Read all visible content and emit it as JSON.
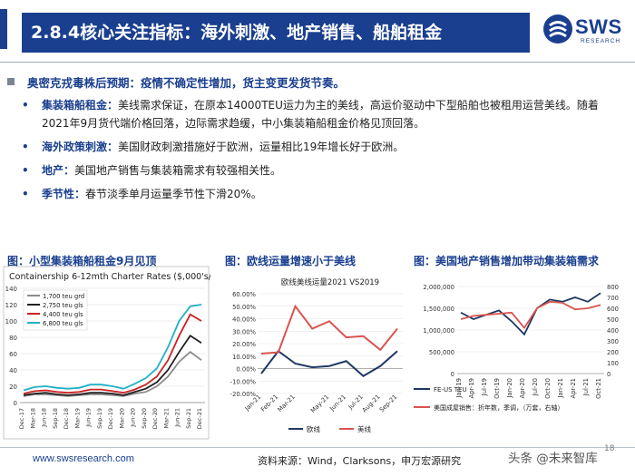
{
  "header": {
    "title": "2.8.4核心关注指标：海外刺激、地产销售、船舶租金",
    "logo_text": "SWS",
    "logo_sub": "RESEARCH"
  },
  "section": {
    "heading": "奥密克戎毒株后预期：疫情不确定性增加，货主变更发货节奏。",
    "bullets": [
      {
        "label": "集装箱船租金：",
        "text": "美线需求保证，在原本14000TEU运力为主的美线，高运价驱动中下型船舶也被租用运营美线。随着2021年9月货代端价格回落，边际需求趋缓，中小集装箱船租金价格见顶回落。"
      },
      {
        "label": "海外政策刺激：",
        "text": "美国财政刺激措施好于欧洲，运量相比19年增长好于欧洲。"
      },
      {
        "label": "地产：",
        "text": "美国地产销售与集装箱需求有较强相关性。"
      },
      {
        "label": "季节性：",
        "text": "春节淡季单月运量季节性下滑20%。"
      }
    ]
  },
  "colors": {
    "navy": "#1a3f8f",
    "eu": "#1f3864",
    "us": "#d9534f",
    "gray": "#8c8c8c",
    "black": "#222222",
    "red": "#cc2222",
    "teal": "#22b0c8"
  },
  "charts": [
    {
      "caption": "图：小型集装箱船租金9月见顶",
      "chart_data": {
        "type": "line",
        "title": "Containership 6-12mth Charter Rates ($,000's/day)",
        "x": [
          "Dec-17",
          "Mar-18",
          "Jun-18",
          "Sep-18",
          "Dec-18",
          "Mar-19",
          "Jun-19",
          "Sep-19",
          "Dec-19",
          "Mar-20",
          "Jun-20",
          "Sep-20",
          "Dec-20",
          "Mar-21",
          "Jun-21",
          "Sep-21",
          "Dec-21"
        ],
        "ylim": [
          0,
          140
        ],
        "yticks": [
          0,
          20,
          40,
          60,
          80,
          100,
          120,
          140
        ],
        "tick_labels": [
          "0",
          "20",
          "40",
          "60",
          "80",
          "100",
          "120",
          "140"
        ],
        "legend_position": "top-left",
        "series": [
          {
            "name": "1,700 teu grd",
            "color": "gray",
            "values": [
              8,
              10,
              10,
              9,
              8,
              9,
              10,
              10,
              9,
              8,
              11,
              13,
              20,
              32,
              50,
              62,
              52
            ]
          },
          {
            "name": "2,750 teu gls",
            "color": "black",
            "values": [
              9,
              11,
              12,
              10,
              9,
              10,
              12,
              12,
              11,
              9,
              13,
              17,
              25,
              40,
              62,
              82,
              73
            ]
          },
          {
            "name": "4,400 teu gls",
            "color": "red",
            "values": [
              11,
              14,
              15,
              13,
              12,
              13,
              16,
              16,
              14,
              12,
              16,
              22,
              32,
              52,
              82,
              108,
              100
            ]
          },
          {
            "name": "6,800 teu gls",
            "color": "teal",
            "values": [
              15,
              19,
              20,
              18,
              17,
              18,
              22,
              22,
              20,
              17,
              23,
              30,
              42,
              68,
              100,
              118,
              120
            ]
          }
        ]
      }
    },
    {
      "caption": "图：欧线运量增速小于美线",
      "chart_data": {
        "type": "line",
        "title": "欧线美线运量2021 VS2019",
        "x": [
          "Jan-21",
          "Feb-21",
          "Mar-21",
          "Apr-21",
          "May-21",
          "Jun-21",
          "Jul-21",
          "Aug-21",
          "Sep-21"
        ],
        "x_tick_labels": [
          "Jan-21",
          "Feb-21",
          "Mar-21",
          "May-21",
          "Jun-21",
          "Jul-21",
          "Aug-21",
          "Sep-21"
        ],
        "ylim": [
          -20,
          60
        ],
        "yticks": [
          -20,
          -10,
          0,
          10,
          20,
          30,
          40,
          50,
          60
        ],
        "tick_labels": [
          "-20.00%",
          "-10.00%",
          "0.00%",
          "10.00%",
          "20.00%",
          "30.00%",
          "40.00%",
          "50.00%",
          "60.00%"
        ],
        "legend_position": "bottom",
        "series": [
          {
            "name": "欧线",
            "color": "eu",
            "values": [
              -4,
              14,
              4,
              1,
              2,
              6,
              -6,
              2,
              14
            ]
          },
          {
            "name": "美线",
            "color": "us",
            "values": [
              12,
              13,
              50,
              32,
              38,
              25,
              26,
              15,
              32
            ]
          }
        ]
      }
    },
    {
      "caption": "图：美国地产销售增加带动集装箱需求",
      "chart_data": {
        "type": "line",
        "x": [
          "Jan-19",
          "Apr-19",
          "Jul-19",
          "Oct-19",
          "Jan-20",
          "Apr-20",
          "Jul-20",
          "Oct-20",
          "Jan-21",
          "Apr-21",
          "Jul-21",
          "Oct-21"
        ],
        "ylim": [
          0,
          2000000
        ],
        "yticks": [
          0,
          500000,
          1000000,
          1500000,
          2000000
        ],
        "tick_labels": [
          "0",
          "500,000",
          "1,000,000",
          "1,500,000",
          "2,000,000"
        ],
        "y2lim": [
          0,
          800
        ],
        "y2ticks": [
          0,
          100,
          200,
          300,
          400,
          500,
          600,
          700,
          800
        ],
        "y2_tick_labels": [
          "0",
          "100",
          "200",
          "300",
          "400",
          "500",
          "600",
          "700",
          "800"
        ],
        "legend_position": "bottom",
        "series": [
          {
            "name": "FE-US TEU",
            "color": "eu",
            "axis": "left",
            "values": [
              1400000,
              1250000,
              1350000,
              1450000,
              1200000,
              900000,
              1500000,
              1700000,
              1650000,
              1750000,
              1650000,
              1850000
            ]
          },
          {
            "name": "美国成屋销售：折年数，季调，（万套，右轴）",
            "color": "us",
            "axis": "right",
            "values": [
              500,
              530,
              540,
              550,
              560,
              420,
              600,
              660,
              650,
              590,
              600,
              630
            ]
          }
        ]
      }
    }
  ],
  "footer": {
    "url": "www.swsresearch.com",
    "source": "资料来源：Wind，Clarksons，申万宏源研究",
    "watermark": "头条 @未来智库",
    "page": "18"
  }
}
